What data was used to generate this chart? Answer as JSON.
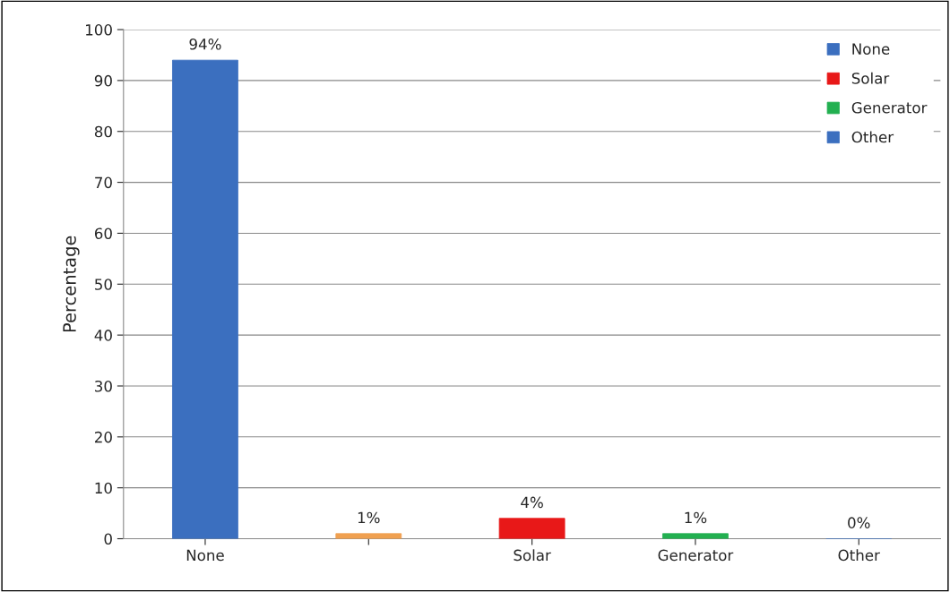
{
  "chart_data": {
    "type": "bar",
    "ylabel": "Percentage",
    "categories": [
      "None",
      null,
      "Solar",
      "Generator",
      "Other"
    ],
    "series": [
      {
        "name": "None",
        "color": "#3b6fbf",
        "values": [
          94,
          null,
          null,
          null,
          null
        ],
        "value_labels": [
          "94%",
          null,
          null,
          null,
          null
        ]
      },
      {
        "color": "#f0a050",
        "values": [
          null,
          1,
          null,
          null,
          null
        ],
        "value_labels": [
          null,
          "1%",
          null,
          null,
          null
        ]
      },
      {
        "name": "Solar",
        "color": "#e81818",
        "values": [
          null,
          null,
          4,
          null,
          null
        ],
        "value_labels": [
          null,
          null,
          "4%",
          null,
          null
        ]
      },
      {
        "name": "Generator",
        "color": "#22b050",
        "values": [
          null,
          null,
          null,
          1,
          null
        ],
        "value_labels": [
          null,
          null,
          null,
          "1%",
          null
        ]
      },
      {
        "name": "Other",
        "color": "#3b6fbf",
        "values": [
          null,
          null,
          null,
          null,
          0
        ],
        "value_labels": [
          null,
          null,
          null,
          null,
          "0%"
        ]
      }
    ],
    "ylim": [
      0,
      100
    ],
    "yticks": [
      0,
      10,
      20,
      30,
      40,
      50,
      60,
      70,
      80,
      90,
      100
    ],
    "grid": "y",
    "legend": "top right"
  }
}
